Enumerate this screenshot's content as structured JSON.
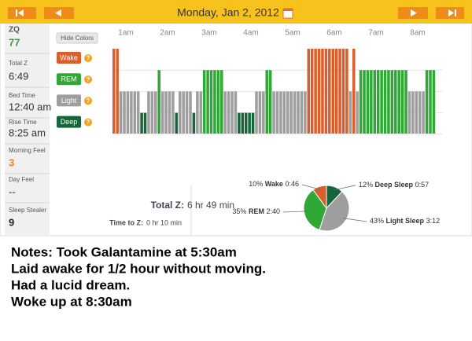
{
  "nav": {
    "date": "Monday, Jan 2, 2012"
  },
  "sidebar": [
    {
      "label": "ZQ",
      "value": "77",
      "color": "#3c9a3c"
    },
    {
      "label": "Total Z",
      "value": "6:49",
      "color": "#333333"
    },
    {
      "label": "Bed Time",
      "value": "12:40 am",
      "color": "#333333"
    },
    {
      "label": "Rise Time",
      "value": "8:25 am",
      "color": "#333333"
    },
    {
      "label": "Morning Feel",
      "value": "3",
      "color": "#e8851a"
    },
    {
      "label": "Day Feel",
      "value": "--",
      "color": "#3a7bd5"
    },
    {
      "label": "Sleep Stealer",
      "value": "9",
      "color": "#222222"
    }
  ],
  "hypnogram": {
    "button": "Hide Colors",
    "hours": [
      "1am",
      "2am",
      "3am",
      "4am",
      "5am",
      "6am",
      "7am",
      "8am"
    ],
    "stages": [
      {
        "name": "Wake",
        "color": "#d9602c",
        "help": "?"
      },
      {
        "name": "REM",
        "color": "#2fa836",
        "help": "?"
      },
      {
        "name": "Light",
        "color": "#9e9e9e",
        "help": "?"
      },
      {
        "name": "Deep",
        "color": "#17663a",
        "help": "?"
      }
    ],
    "epochs": [
      0,
      0,
      2,
      2,
      2,
      2,
      2,
      2,
      3,
      3,
      2,
      2,
      2,
      1,
      2,
      2,
      2,
      2,
      3,
      2,
      2,
      2,
      2,
      3,
      2,
      2,
      1,
      1,
      1,
      1,
      1,
      1,
      2,
      2,
      2,
      2,
      3,
      3,
      3,
      3,
      3,
      2,
      2,
      2,
      1,
      1,
      2,
      2,
      2,
      2,
      2,
      2,
      2,
      2,
      2,
      2,
      0,
      0,
      0,
      0,
      0,
      0,
      0,
      0,
      0,
      0,
      0,
      0,
      2,
      0,
      2,
      1,
      1,
      1,
      1,
      1,
      1,
      1,
      1,
      1,
      1,
      1,
      1,
      1,
      1,
      2,
      2,
      2,
      2,
      2,
      1,
      1,
      1
    ]
  },
  "summary": {
    "total_label": "Total Z:",
    "total_value": "6 hr 49 min",
    "ttz_label": "Time to Z:",
    "ttz_value": "0 hr 10 min"
  },
  "pie": {
    "type": "pie",
    "slices": [
      {
        "name": "Deep Sleep",
        "value": 12,
        "value_label": "12%",
        "duration": "0:57",
        "color": "#17663a"
      },
      {
        "name": "Light Sleep",
        "value": 43,
        "value_label": "43%",
        "duration": "3:12",
        "color": "#9e9e9e"
      },
      {
        "name": "REM",
        "value": 35,
        "value_label": "35%",
        "duration": "2:40",
        "color": "#2fa836"
      },
      {
        "name": "Wake",
        "value": 10,
        "value_label": "10%",
        "duration": "0:46",
        "color": "#d9602c"
      }
    ]
  },
  "notes": [
    "Notes: Took Galantamine at 5:30am",
    "Laid awake for 1/2 hour without moving.",
    "Had a lucid dream.",
    "Woke up at 8:30am"
  ]
}
